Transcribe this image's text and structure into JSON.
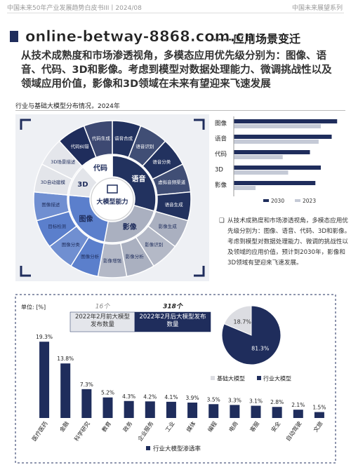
{
  "header": {
    "left": "中国未来50年产业发展趋势白皮书III丨2024/08",
    "right": "中国未来展望系列"
  },
  "title": "——应用场景变迁",
  "watermark": "online-betway-8868.com.cn",
  "subtitle": "从技术成熟度和市场渗透视角，多模态应用优先级分别为：图像、语音、代码、3D和影像。考虑到模型对数据处理能力、微调挑战性以及领域应用价值，影像和3D领域在未来有望迎来飞速发展",
  "section_label": "行业与基础大模型分布情况，2024年",
  "diagram": {
    "center": "大模型能力",
    "groups": [
      {
        "name": "语音",
        "color": "#22325f",
        "items": [
          "语音合成",
          "语音识别",
          "语音分类",
          "虚拟音频渠道",
          "语音生成"
        ]
      },
      {
        "name": "影像",
        "color": "#aab0c0",
        "items": [
          "影像生成",
          "影像识别",
          "影像分析",
          "影像增强"
        ]
      },
      {
        "name": "图像",
        "color": "#5b7fcc",
        "items": [
          "图像分析",
          "图像分类",
          "目标检测",
          "图像描述"
        ]
      },
      {
        "name": "3D",
        "color": "#e3e5ea",
        "items": [
          "3D自动建模",
          "3D场景描述"
        ]
      },
      {
        "name": "代码",
        "color": "#ffffff",
        "items": [
          "代码纠错",
          "代码生成"
        ]
      }
    ]
  },
  "note": "从技术成熟度和市场渗透视角，多模态应用优先级分别为：图像、语音、代码、3D和影像。考虑到模型对数据处理能力、微调的挑战性以及领域的应用价值，预计到2030年，影像和3D领域有望迎来飞速发展。",
  "bottom": {
    "releases": [
      {
        "label": "2022年2月前大模型发布数量",
        "count": "16个"
      },
      {
        "label": "2022年2月后大模型发布数量",
        "count": "318个"
      }
    ]
  },
  "chart_data": [
    {
      "type": "bar",
      "orientation": "horizontal",
      "categories": [
        "图像",
        "语音",
        "代码",
        "3D",
        "影像"
      ],
      "series": [
        {
          "name": "2030",
          "color": "#1f2d5c",
          "values": [
            95,
            90,
            70,
            80,
            75
          ]
        },
        {
          "name": "2023",
          "color": "#c5cad6",
          "values": [
            80,
            78,
            45,
            50,
            20
          ]
        }
      ],
      "xlim": [
        0,
        100
      ]
    },
    {
      "type": "pie",
      "categories": [
        "基础大模型",
        "行业大模型"
      ],
      "values": [
        18.7,
        81.3
      ],
      "value_labels": [
        "18.7%",
        "81.3%"
      ],
      "colors": [
        "#dcdde2",
        "#1f2d5c"
      ]
    },
    {
      "type": "bar",
      "orientation": "vertical",
      "ylabel": "单位: [%]",
      "categories": [
        "医疗医药",
        "金融",
        "科学研究",
        "教育",
        "政务",
        "企业服务",
        "工业",
        "媒体",
        "编程",
        "电商",
        "客服",
        "安全",
        "自动驾驶",
        "文旅"
      ],
      "series": [
        {
          "name": "行业大模型渗透率",
          "color": "#1f2d5c",
          "values": [
            19.3,
            13.8,
            7.3,
            5.2,
            4.3,
            4.2,
            4.1,
            3.9,
            3.5,
            3.3,
            3.1,
            2.8,
            2.1,
            1.5
          ],
          "value_labels": [
            "19.3%",
            "13.8%",
            "7.3%",
            "5.2%",
            "4.3%",
            "4.2%",
            "4.1%",
            "3.9%",
            "3.5%",
            "3.3%",
            "3.1%",
            "2.8%",
            "2.1%",
            "1.5%"
          ]
        }
      ],
      "ylim": [
        0,
        22
      ]
    }
  ]
}
